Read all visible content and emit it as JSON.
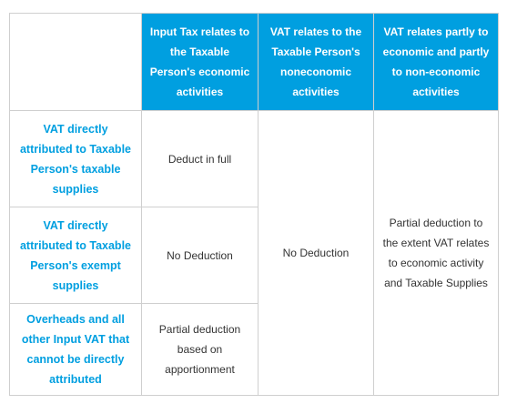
{
  "columns": [
    "",
    "Input Tax relates to the Taxable Person's economic activities",
    "VAT relates to the Taxable Person's noneconomic activities",
    "VAT relates partly to economic and partly to non-economic activities"
  ],
  "rows": [
    {
      "header": "VAT directly attributed to Taxable Person's taxable supplies",
      "economic": "Deduct in full"
    },
    {
      "header": "VAT directly attributed to Taxable Person's exempt supplies",
      "economic": "No Deduction"
    },
    {
      "header": "Overheads and all other Input VAT that cannot be directly attributed",
      "economic": "Partial deduction based on apportionment"
    }
  ],
  "noneconomic_all": "No Deduction",
  "partly_all": "Partial deduction to the extent VAT relates to economic activity and Taxable Supplies",
  "colors": {
    "accent": "#009fe0",
    "text": "#333333",
    "border": "#cfcfcf"
  }
}
